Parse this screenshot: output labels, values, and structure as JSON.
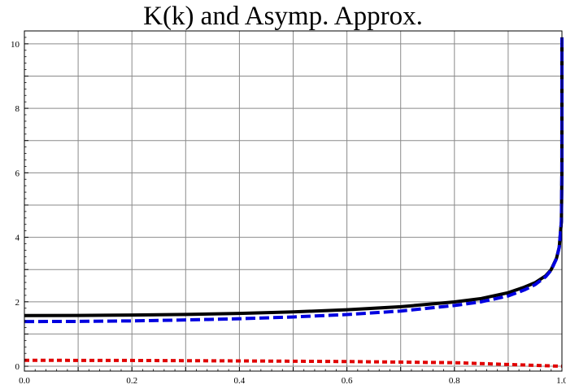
{
  "chart_data": {
    "type": "line",
    "title": "K(k) and Asymp. Approx.",
    "xlabel": "",
    "ylabel": "",
    "xlim": [
      0,
      1
    ],
    "ylim": [
      0,
      10.4
    ],
    "x_ticks": [
      "0.0",
      "0.2",
      "0.4",
      "0.6",
      "0.8",
      "1.0"
    ],
    "y_ticks": [
      "0",
      "2",
      "4",
      "6",
      "8",
      "10"
    ],
    "grid": true,
    "series": [
      {
        "color": "#000000",
        "style": "solid",
        "x": [
          0.0,
          0.1,
          0.2,
          0.3,
          0.4,
          0.5,
          0.6,
          0.7,
          0.8,
          0.85,
          0.9,
          0.93,
          0.95,
          0.97,
          0.98,
          0.99,
          0.995,
          0.999,
          0.9999,
          0.99999999
        ],
        "y": [
          1.571,
          1.575,
          1.587,
          1.608,
          1.64,
          1.686,
          1.751,
          1.846,
          1.995,
          2.1,
          2.281,
          2.453,
          2.591,
          2.809,
          2.998,
          3.357,
          3.701,
          4.496,
          5.991,
          10.2
        ]
      },
      {
        "color": "#0000e0",
        "style": "dashed",
        "x": [
          0.0,
          0.1,
          0.2,
          0.3,
          0.4,
          0.5,
          0.6,
          0.7,
          0.8,
          0.85,
          0.9,
          0.93,
          0.95,
          0.97,
          0.98,
          0.99,
          0.995,
          0.999,
          0.9999,
          0.99999999
        ],
        "y": [
          1.386,
          1.391,
          1.407,
          1.436,
          1.474,
          1.529,
          1.605,
          1.712,
          1.884,
          1.999,
          2.18,
          2.366,
          2.532,
          2.78,
          2.982,
          3.341,
          3.688,
          4.492,
          5.991,
          10.2
        ]
      },
      {
        "color": "#e00000",
        "style": "dotted",
        "x": [
          0.0,
          0.2,
          0.4,
          0.6,
          0.8,
          1.0
        ],
        "y": [
          0.185,
          0.18,
          0.166,
          0.146,
          0.111,
          0.0
        ]
      }
    ]
  }
}
